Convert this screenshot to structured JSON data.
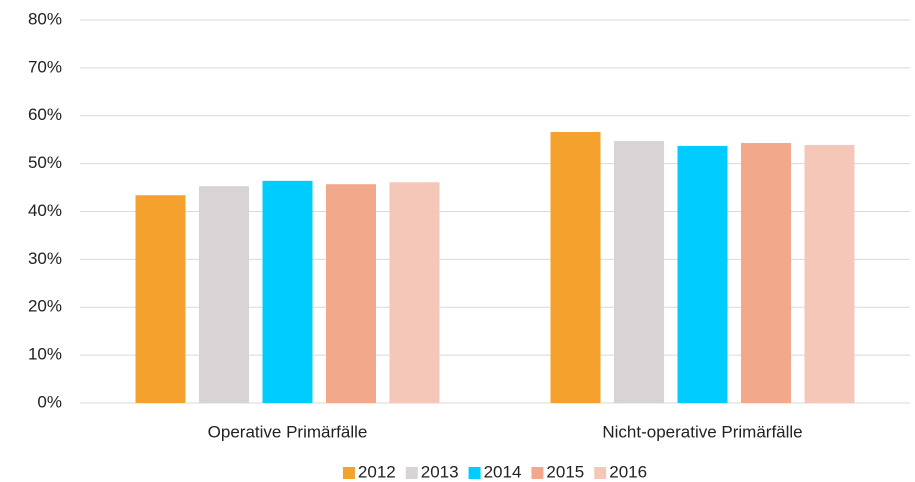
{
  "chart_data": {
    "type": "bar",
    "categories": [
      "Operative Primärfälle",
      "Nicht-operative Primärfälle"
    ],
    "series": [
      {
        "name": "2012",
        "color": "#f4a22d",
        "values": [
          43.4,
          56.6
        ]
      },
      {
        "name": "2013",
        "color": "#d8d3d5",
        "values": [
          45.3,
          54.7
        ]
      },
      {
        "name": "2014",
        "color": "#00ccff",
        "values": [
          46.4,
          53.7
        ]
      },
      {
        "name": "2015",
        "color": "#f2a88a",
        "values": [
          45.7,
          54.3
        ]
      },
      {
        "name": "2016",
        "color": "#f5c7b8",
        "values": [
          46.1,
          53.9
        ]
      }
    ],
    "ylim": [
      0,
      80
    ],
    "yticks": [
      {
        "value": 0,
        "label": "0%"
      },
      {
        "value": 10,
        "label": "10%"
      },
      {
        "value": 20,
        "label": "20%"
      },
      {
        "value": 30,
        "label": "30%"
      },
      {
        "value": 40,
        "label": "40%"
      },
      {
        "value": 50,
        "label": "50%"
      },
      {
        "value": 60,
        "label": "60%"
      },
      {
        "value": 70,
        "label": "70%"
      },
      {
        "value": 80,
        "label": "80%"
      }
    ],
    "grid": true,
    "legend": "bottom"
  }
}
